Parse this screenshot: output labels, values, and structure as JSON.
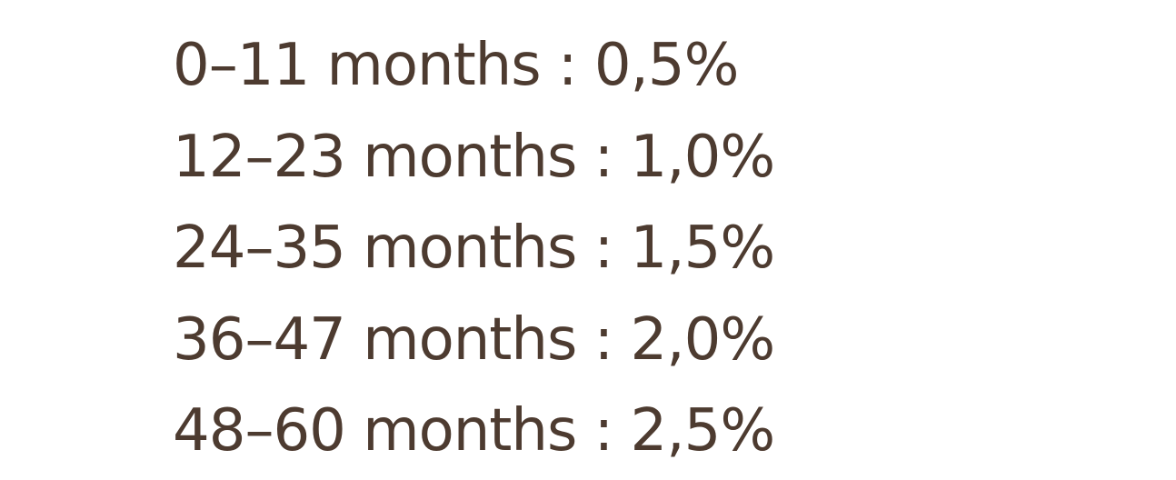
{
  "rows": [
    "0–11 months : 0,5%",
    "12–23 months : 1,0%",
    "24–35 months : 1,5%",
    "36–47 months : 2,0%",
    "48–60 months : 2,5%"
  ],
  "colors": {
    "text": "#4d3b30",
    "background": "#ffffff"
  }
}
